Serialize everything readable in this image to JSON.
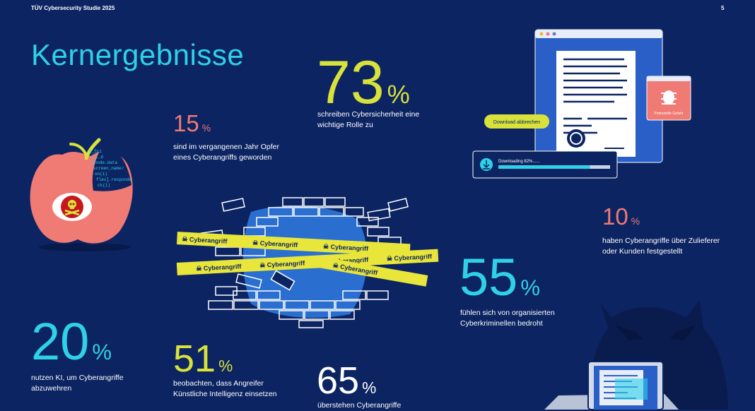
{
  "header": {
    "doc_title": "TÜV Cybersecurity Studie 2025",
    "page_number": "5"
  },
  "title": "Kernergebnisse",
  "stats": {
    "s73": {
      "value": "73",
      "unit": "%",
      "text_1": "schreiben Cybersicherheit eine",
      "text_2": "wichtige Rolle zu"
    },
    "s15": {
      "value": "15",
      "unit": "%",
      "text_1": "sind im vergangenen Jahr Opfer",
      "text_2": "eines Cyberangriffs geworden"
    },
    "s10": {
      "value": "10",
      "unit": "%",
      "text_1": "haben Cyberangriffe über Zulieferer",
      "text_2": "oder Kunden festgestellt"
    },
    "s55": {
      "value": "55",
      "unit": "%",
      "text_1": "fühlen sich von organisierten",
      "text_2": "Cyberkriminellen bedroht"
    },
    "s20": {
      "value": "20",
      "unit": "%",
      "text_1": "nutzen KI, um Cyberangriffe",
      "text_2": "abzuwehren"
    },
    "s51": {
      "value": "51",
      "unit": "%",
      "text_1": "beobachten, dass Angreifer",
      "text_2": "Künstliche Intelligenz einsetzen"
    },
    "s65": {
      "value": "65",
      "unit": "%",
      "text_1": "überstehen Cyberangriffe"
    }
  },
  "illustration": {
    "download_cancel": "Download abbrechen",
    "downloading": "Downloading 82%......",
    "download_progress": 0.82,
    "danger_label": "Potenzielle Gefahr",
    "tape_label": "Cyberangriff",
    "apple_code": [
      "a_Siz",
      "ist_d",
      "ponde.data",
      "screen_name/",
      "on(i)",
      "fles].responde",
      "ck(i)"
    ]
  },
  "colors": {
    "background": "#0c2462",
    "cyan": "#2fd1e6",
    "yellow": "#d8e23a",
    "coral": "#f07a74"
  }
}
